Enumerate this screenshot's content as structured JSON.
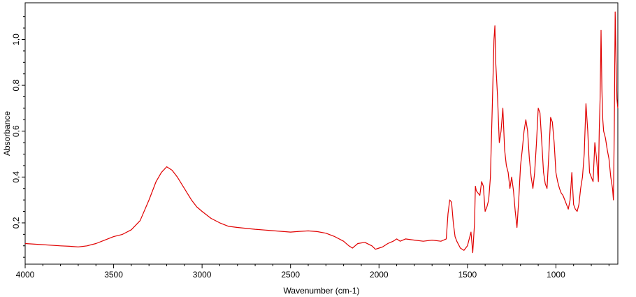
{
  "chart_data": {
    "type": "line",
    "title": "",
    "xlabel": "Wavenumber (cm-1)",
    "ylabel": "Absorbance",
    "xlim": [
      4000,
      650
    ],
    "ylim": [
      0.02,
      1.16
    ],
    "x_reversed": true,
    "grid": false,
    "line_color": "#e00000",
    "xticks": [
      4000,
      3500,
      3000,
      2500,
      2000,
      1500,
      1000
    ],
    "yticks": [
      0.2,
      0.4,
      0.6,
      0.8,
      1.0
    ],
    "xtick_labels": [
      "4000",
      "3500",
      "3000",
      "2500",
      "2000",
      "1500",
      "1000"
    ],
    "ytick_labels": [
      "0,2",
      "0,4",
      "0,6",
      "0,8",
      "1,0"
    ],
    "series": [
      {
        "x": [
          4000,
          3900,
          3800,
          3750,
          3700,
          3650,
          3600,
          3550,
          3500,
          3450,
          3400,
          3350,
          3300,
          3260,
          3230,
          3200,
          3170,
          3140,
          3100,
          3060,
          3030,
          3000,
          2950,
          2900,
          2850,
          2800,
          2700,
          2600,
          2500,
          2450,
          2400,
          2350,
          2300,
          2250,
          2200,
          2170,
          2150,
          2120,
          2080,
          2040,
          2020,
          2000,
          1980,
          1950,
          1920,
          1900,
          1880,
          1850,
          1800,
          1750,
          1700,
          1650,
          1620,
          1610,
          1600,
          1590,
          1580,
          1570,
          1560,
          1540,
          1520,
          1500,
          1480,
          1470,
          1460,
          1455,
          1450,
          1440,
          1430,
          1420,
          1410,
          1400,
          1390,
          1380,
          1370,
          1360,
          1350,
          1345,
          1340,
          1330,
          1320,
          1310,
          1300,
          1290,
          1280,
          1270,
          1260,
          1250,
          1240,
          1230,
          1220,
          1210,
          1200,
          1190,
          1180,
          1170,
          1160,
          1150,
          1140,
          1130,
          1120,
          1110,
          1100,
          1090,
          1080,
          1070,
          1060,
          1050,
          1040,
          1030,
          1020,
          1010,
          1000,
          990,
          980,
          970,
          960,
          950,
          940,
          930,
          920,
          910,
          900,
          890,
          880,
          870,
          860,
          850,
          840,
          830,
          820,
          810,
          800,
          790,
          780,
          770,
          760,
          755,
          750,
          745,
          740,
          735,
          730,
          720,
          710,
          700,
          690,
          680,
          675,
          670,
          665,
          660,
          655,
          650
        ],
        "y": [
          0.11,
          0.105,
          0.1,
          0.098,
          0.095,
          0.1,
          0.11,
          0.125,
          0.14,
          0.15,
          0.17,
          0.21,
          0.3,
          0.38,
          0.42,
          0.445,
          0.43,
          0.4,
          0.35,
          0.3,
          0.27,
          0.25,
          0.22,
          0.2,
          0.185,
          0.18,
          0.172,
          0.166,
          0.16,
          0.163,
          0.165,
          0.162,
          0.155,
          0.14,
          0.12,
          0.1,
          0.09,
          0.11,
          0.115,
          0.1,
          0.085,
          0.09,
          0.095,
          0.11,
          0.12,
          0.13,
          0.12,
          0.13,
          0.125,
          0.12,
          0.125,
          0.12,
          0.13,
          0.24,
          0.3,
          0.29,
          0.2,
          0.14,
          0.12,
          0.09,
          0.08,
          0.1,
          0.16,
          0.07,
          0.2,
          0.36,
          0.34,
          0.33,
          0.32,
          0.38,
          0.36,
          0.25,
          0.27,
          0.3,
          0.4,
          0.7,
          1.0,
          1.06,
          0.9,
          0.75,
          0.55,
          0.6,
          0.7,
          0.52,
          0.45,
          0.42,
          0.35,
          0.4,
          0.34,
          0.25,
          0.18,
          0.3,
          0.45,
          0.52,
          0.6,
          0.65,
          0.6,
          0.48,
          0.4,
          0.35,
          0.42,
          0.55,
          0.7,
          0.68,
          0.55,
          0.42,
          0.37,
          0.35,
          0.5,
          0.66,
          0.64,
          0.55,
          0.42,
          0.38,
          0.35,
          0.33,
          0.32,
          0.3,
          0.28,
          0.26,
          0.3,
          0.42,
          0.28,
          0.26,
          0.25,
          0.28,
          0.35,
          0.4,
          0.5,
          0.72,
          0.6,
          0.42,
          0.4,
          0.38,
          0.55,
          0.48,
          0.38,
          0.6,
          0.75,
          1.04,
          0.78,
          0.65,
          0.6,
          0.57,
          0.52,
          0.48,
          0.4,
          0.35,
          0.3,
          0.6,
          1.12,
          0.9,
          0.74,
          0.7
        ]
      }
    ]
  }
}
